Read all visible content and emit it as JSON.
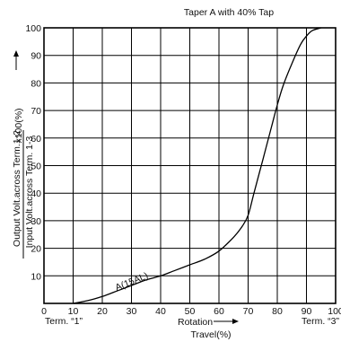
{
  "chart_data": {
    "type": "line",
    "title": "Taper A with  40%  Tap",
    "ylabel_numerator": "Output Volt.across Term.1-2",
    "ylabel_denominator": "Input Volt.across Term.  1-3",
    "ylabel_suffix": "x100(%)",
    "xlabel_main": "Rotation",
    "xlabel_sub": "Travel(%)",
    "term_left": "Term. “1”",
    "term_right": "Term. “3”",
    "curve_label": "A(15AL)",
    "xlim": [
      0,
      100
    ],
    "ylim": [
      0,
      100
    ],
    "x_ticks": [
      "0",
      "10",
      "20",
      "30",
      "40",
      "50",
      "60",
      "70",
      "80",
      "90",
      "100"
    ],
    "y_ticks": [
      "10",
      "20",
      "30",
      "40",
      "50",
      "60",
      "70",
      "80",
      "90",
      "100"
    ],
    "grid": true,
    "series": [
      {
        "x": [
          10,
          15,
          20,
          25,
          30,
          35,
          40,
          45,
          50,
          55,
          60,
          65,
          68,
          70,
          72,
          75,
          78,
          80,
          82,
          85,
          88,
          90,
          92,
          95
        ],
        "y": [
          0,
          1,
          2.5,
          4.5,
          6.5,
          8.5,
          10,
          12,
          14,
          16,
          19,
          24,
          28,
          32,
          40,
          52,
          64,
          72,
          79,
          87,
          94,
          97,
          99,
          100
        ]
      }
    ]
  }
}
